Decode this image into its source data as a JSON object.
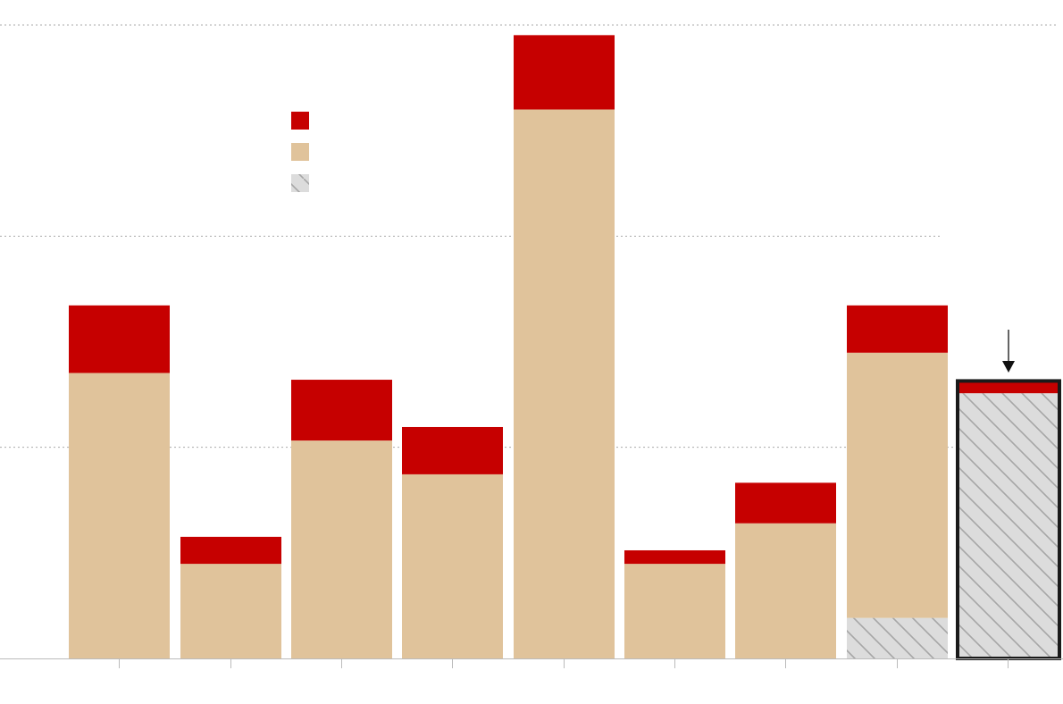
{
  "chart_data": {
    "type": "bar",
    "stacked": true,
    "title": "",
    "xlabel": "",
    "ylabel": "",
    "categories": [
      "",
      "",
      "",
      "",
      "",
      "",
      "",
      "",
      ""
    ],
    "ylim": [
      0,
      18.75
    ],
    "grid": true,
    "legend_position": "top-left",
    "series": [
      {
        "key": "hatched",
        "values": [
          0,
          0,
          0,
          0,
          0,
          0,
          0,
          1.2,
          7.85
        ]
      },
      {
        "key": "tan",
        "values": [
          8.45,
          2.8,
          6.45,
          5.45,
          16.25,
          2.8,
          4.0,
          7.85,
          0
        ]
      },
      {
        "key": "red",
        "values": [
          2.0,
          0.8,
          1.8,
          1.4,
          2.2,
          0.4,
          1.2,
          1.4,
          0.35
        ]
      }
    ],
    "colors": {
      "red": "#c60000",
      "tan": "#e0c39b",
      "hatch_fill": "#dcdcdc",
      "hatch_line": "#a6a6a6",
      "highlight_border": "#1a1a1a",
      "grid": "#aaaaaa",
      "axis": "#bbbbbb"
    },
    "highlight_index": 8
  }
}
